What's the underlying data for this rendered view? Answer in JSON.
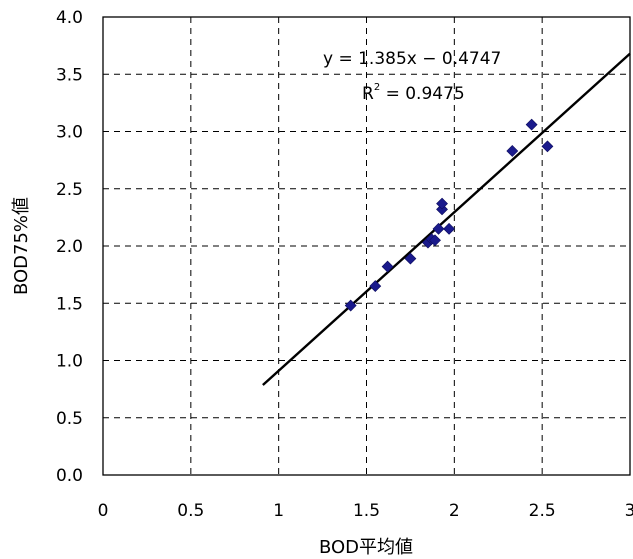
{
  "chart_data": {
    "type": "scatter",
    "xlabel": "BOD平均値",
    "ylabel": "BOD75%値",
    "xlim": [
      0,
      3
    ],
    "ylim": [
      0,
      4
    ],
    "x_ticks": [
      "0",
      "0.5",
      "1",
      "1.5",
      "2",
      "2.5",
      "3"
    ],
    "y_ticks": [
      "0.0",
      "0.5",
      "1.0",
      "1.5",
      "2.0",
      "2.5",
      "3.0",
      "3.5",
      "4.0"
    ],
    "grid": "dashed",
    "marker": "diamond",
    "marker_color": "#1a1a8c",
    "points": [
      {
        "x": 1.41,
        "y": 1.48
      },
      {
        "x": 1.55,
        "y": 1.65
      },
      {
        "x": 1.62,
        "y": 1.82
      },
      {
        "x": 1.75,
        "y": 1.89
      },
      {
        "x": 1.85,
        "y": 2.03
      },
      {
        "x": 1.87,
        "y": 2.06
      },
      {
        "x": 1.89,
        "y": 2.05
      },
      {
        "x": 1.91,
        "y": 2.15
      },
      {
        "x": 1.93,
        "y": 2.32
      },
      {
        "x": 1.93,
        "y": 2.37
      },
      {
        "x": 1.97,
        "y": 2.15
      },
      {
        "x": 2.33,
        "y": 2.83
      },
      {
        "x": 2.44,
        "y": 3.06
      },
      {
        "x": 2.53,
        "y": 2.87
      }
    ],
    "trendline": {
      "slope": 1.385,
      "intercept": -0.4747,
      "x_start": 0.91,
      "x_end": 3.0
    },
    "equation_text": "y = 1.385x − 0.4747",
    "r2_label": "R",
    "r2_exponent": "2",
    "r2_value_text": " = 0.9475"
  }
}
